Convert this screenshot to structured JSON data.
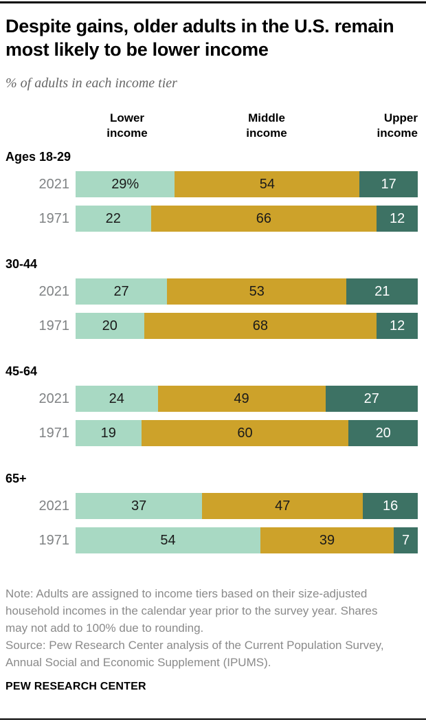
{
  "page": {
    "title": "Despite gains, older adults in the U.S. remain most likely to be lower income",
    "subtitle": "% of adults in each income tier",
    "note": "Note: Adults are assigned to income tiers based on their size-adjusted household incomes in the calendar year prior to the survey year. Shares may not add to 100% due to rounding.",
    "source": "Source: Pew Research Center analysis of the Current Population Survey, Annual Social and Economic Supplement (IPUMS).",
    "branding": "PEW RESEARCH CENTER"
  },
  "chart_data": {
    "type": "bar",
    "stacked": true,
    "orientation": "horizontal",
    "title": "Despite gains, older adults in the U.S. remain most likely to be lower income",
    "subtitle": "% of adults in each income tier",
    "unit": "%",
    "xlim": [
      0,
      100
    ],
    "series_labels": [
      "Lower income",
      "Middle income",
      "Upper income"
    ],
    "colors": {
      "lower_income": "#a8d9c3",
      "middle_income": "#cda22a",
      "upper_income": "#3d7264"
    },
    "groups": [
      {
        "label": "Ages 18-29",
        "rows": [
          {
            "year": "2021",
            "values": [
              29,
              54,
              17
            ],
            "labels": [
              "29%",
              "54",
              "17"
            ]
          },
          {
            "year": "1971",
            "values": [
              22,
              66,
              12
            ],
            "labels": [
              "22",
              "66",
              "12"
            ]
          }
        ]
      },
      {
        "label": "30-44",
        "rows": [
          {
            "year": "2021",
            "values": [
              27,
              53,
              21
            ],
            "labels": [
              "27",
              "53",
              "21"
            ]
          },
          {
            "year": "1971",
            "values": [
              20,
              68,
              12
            ],
            "labels": [
              "20",
              "68",
              "12"
            ]
          }
        ]
      },
      {
        "label": "45-64",
        "rows": [
          {
            "year": "2021",
            "values": [
              24,
              49,
              27
            ],
            "labels": [
              "24",
              "49",
              "27"
            ]
          },
          {
            "year": "1971",
            "values": [
              19,
              60,
              20
            ],
            "labels": [
              "19",
              "60",
              "20"
            ]
          }
        ]
      },
      {
        "label": "65+",
        "rows": [
          {
            "year": "2021",
            "values": [
              37,
              47,
              16
            ],
            "labels": [
              "37",
              "47",
              "16"
            ]
          },
          {
            "year": "1971",
            "values": [
              54,
              39,
              7
            ],
            "labels": [
              "54",
              "39",
              "7"
            ]
          }
        ]
      }
    ]
  }
}
